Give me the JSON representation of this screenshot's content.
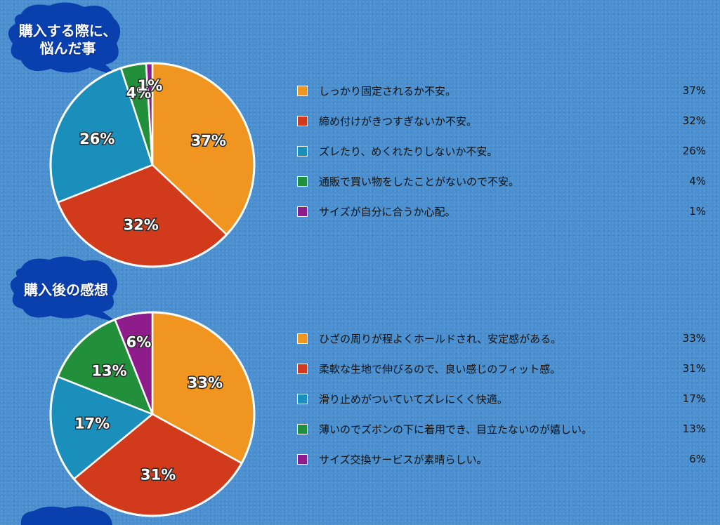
{
  "colors": {
    "orange": "#f0951f",
    "red": "#d13a1a",
    "blue": "#1a8fbb",
    "green": "#22903a",
    "purple": "#8e1c8a",
    "bubble": "#0a3fae"
  },
  "section1": {
    "bubble_line1": "購入する際に、",
    "bubble_line2": "悩んだ事",
    "legend": [
      {
        "text": "しっかり固定されるか不安。",
        "pct": "37%"
      },
      {
        "text": "締め付けがきつすぎないか不安。",
        "pct": "32%"
      },
      {
        "text": "ズレたり、めくれたりしないか不安。",
        "pct": "26%"
      },
      {
        "text": "通販で買い物をしたことがないので不安。",
        "pct": "4%"
      },
      {
        "text": "サイズが自分に合うか心配。",
        "pct": "1%"
      }
    ]
  },
  "section2": {
    "bubble_line1": "購入後の感想",
    "legend": [
      {
        "text": "ひざの周りが程よくホールドされ、安定感がある。",
        "pct": "33%"
      },
      {
        "text": "柔軟な生地で伸びるので、良い感じのフィット感。",
        "pct": "31%"
      },
      {
        "text": "滑り止めがついていてズレにくく快適。",
        "pct": "17%"
      },
      {
        "text": "薄いのでズボンの下に着用でき、目立たないのが嬉しい。",
        "pct": "13%"
      },
      {
        "text": "サイズ交換サービスが素晴らしい。",
        "pct": "6%"
      }
    ]
  },
  "chart_data": [
    {
      "type": "pie",
      "title": "購入する際に、悩んだ事",
      "categories": [
        "しっかり固定されるか不安。",
        "締め付けがきつすぎないか不安。",
        "ズレたり、めくれたりしないか不安。",
        "通販で買い物をしたことがないので不安。",
        "サイズが自分に合うか心配。"
      ],
      "values": [
        37,
        32,
        26,
        4,
        1
      ],
      "labels": [
        "37%",
        "32%",
        "26%",
        "4%",
        "1%"
      ],
      "colors": [
        "#f0951f",
        "#d13a1a",
        "#1a8fbb",
        "#22903a",
        "#8e1c8a"
      ]
    },
    {
      "type": "pie",
      "title": "購入後の感想",
      "categories": [
        "ひざの周りが程よくホールドされ、安定感がある。",
        "柔軟な生地で伸びるので、良い感じのフィット感。",
        "滑り止めがついていてズレにくく快適。",
        "薄いのでズボンの下に着用でき、目立たないのが嬉しい。",
        "サイズ交換サービスが素晴らしい。"
      ],
      "values": [
        33,
        31,
        17,
        13,
        6
      ],
      "labels": [
        "33%",
        "31%",
        "17%",
        "13%",
        "6%"
      ],
      "colors": [
        "#f0951f",
        "#d13a1a",
        "#1a8fbb",
        "#22903a",
        "#8e1c8a"
      ]
    }
  ]
}
